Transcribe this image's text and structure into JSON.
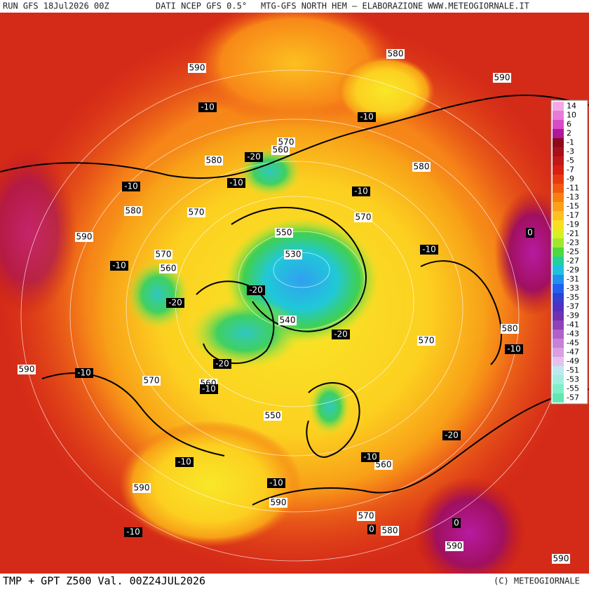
{
  "header": {
    "run": "RUN GFS 18Jul2026 00Z",
    "source": "DATI NCEP GFS 0.5°",
    "credit": "MTG-GFS NORTH HEM – ELABORAZIONE WWW.METEOGIORNALE.IT"
  },
  "footer": {
    "title": "TMP + GPT Z500 Val. 00Z24JUL2026",
    "copyright": "(C) METEOGIORNALE"
  },
  "legend": {
    "labels": [
      14,
      10,
      6,
      2,
      -1,
      -3,
      -5,
      -7,
      -9,
      -11,
      -13,
      -15,
      -17,
      -19,
      -21,
      -23,
      -25,
      -27,
      -29,
      -31,
      -33,
      -35,
      -37,
      -39,
      -41,
      -43,
      -45,
      -47,
      -49,
      -51,
      -53,
      -55,
      -57
    ],
    "colors": [
      "#f5a8e8",
      "#e87ad8",
      "#d84ac8",
      "#b0189a",
      "#8c0a1e",
      "#a80f18",
      "#c01818",
      "#d82010",
      "#e83a10",
      "#f05a10",
      "#f88010",
      "#fca018",
      "#fcc020",
      "#f8e020",
      "#d8f020",
      "#a0e830",
      "#50d840",
      "#20d0a0",
      "#20c0e0",
      "#2090f0",
      "#2060f0",
      "#3040d0",
      "#5030c0",
      "#7030b0",
      "#9040b8",
      "#b060c8",
      "#c880d8",
      "#d8a0e0",
      "#e8c0f0",
      "#c0e8f0",
      "#a0f0e0",
      "#80f0c8",
      "#60e8b0"
    ]
  },
  "height_labels": [
    590,
    580,
    590,
    570,
    560,
    580,
    580,
    580,
    570,
    570,
    590,
    550,
    570,
    530,
    560,
    540,
    580,
    570,
    590,
    570,
    560,
    550,
    560,
    590,
    590,
    570,
    580,
    590,
    590
  ],
  "temp_labels": [
    -10,
    -10,
    -20,
    -10,
    -10,
    -10,
    -10,
    -10,
    -20,
    -20,
    -20,
    -20,
    -10,
    -10,
    -10,
    -20,
    -10,
    -10,
    -10,
    -10,
    0,
    0,
    0
  ]
}
